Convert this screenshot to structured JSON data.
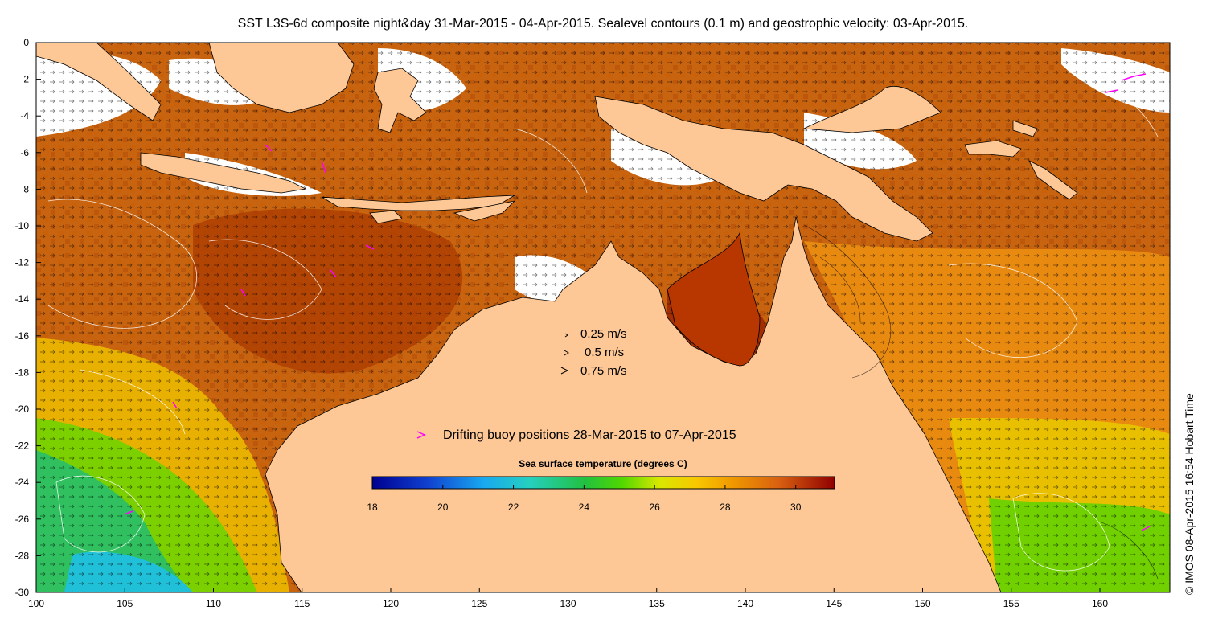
{
  "title": "SST L3S-6d composite night&day 31-Mar-2015 - 04-Apr-2015. Sealevel contours (0.1 m) and geostrophic velocity: 03-Apr-2015.",
  "credit": "© IMOS 08-Apr-2015 16:54 Hobart Time",
  "x_ticks": [
    "100",
    "105",
    "110",
    "115",
    "120",
    "125",
    "130",
    "135",
    "140",
    "145",
    "150",
    "155",
    "160"
  ],
  "y_ticks": [
    "0",
    "-2",
    "-4",
    "-6",
    "-8",
    "-10",
    "-12",
    "-14",
    "-16",
    "-18",
    "-20",
    "-22",
    "-24",
    "-26",
    "-28",
    "-30"
  ],
  "velocity_legend": [
    "0.25 m/s",
    "0.5 m/s",
    "0.75 m/s"
  ],
  "buoy_legend": "Drifting buoy positions 28-Mar-2015 to 07-Apr-2015",
  "colorbar": {
    "title": "Sea surface temperature (degrees C)",
    "ticks": [
      "18",
      "20",
      "22",
      "24",
      "26",
      "28",
      "30"
    ]
  },
  "colors": {
    "land": "#fdc896",
    "buoy": "#ff00ff",
    "no_data": "#ffffff"
  }
}
